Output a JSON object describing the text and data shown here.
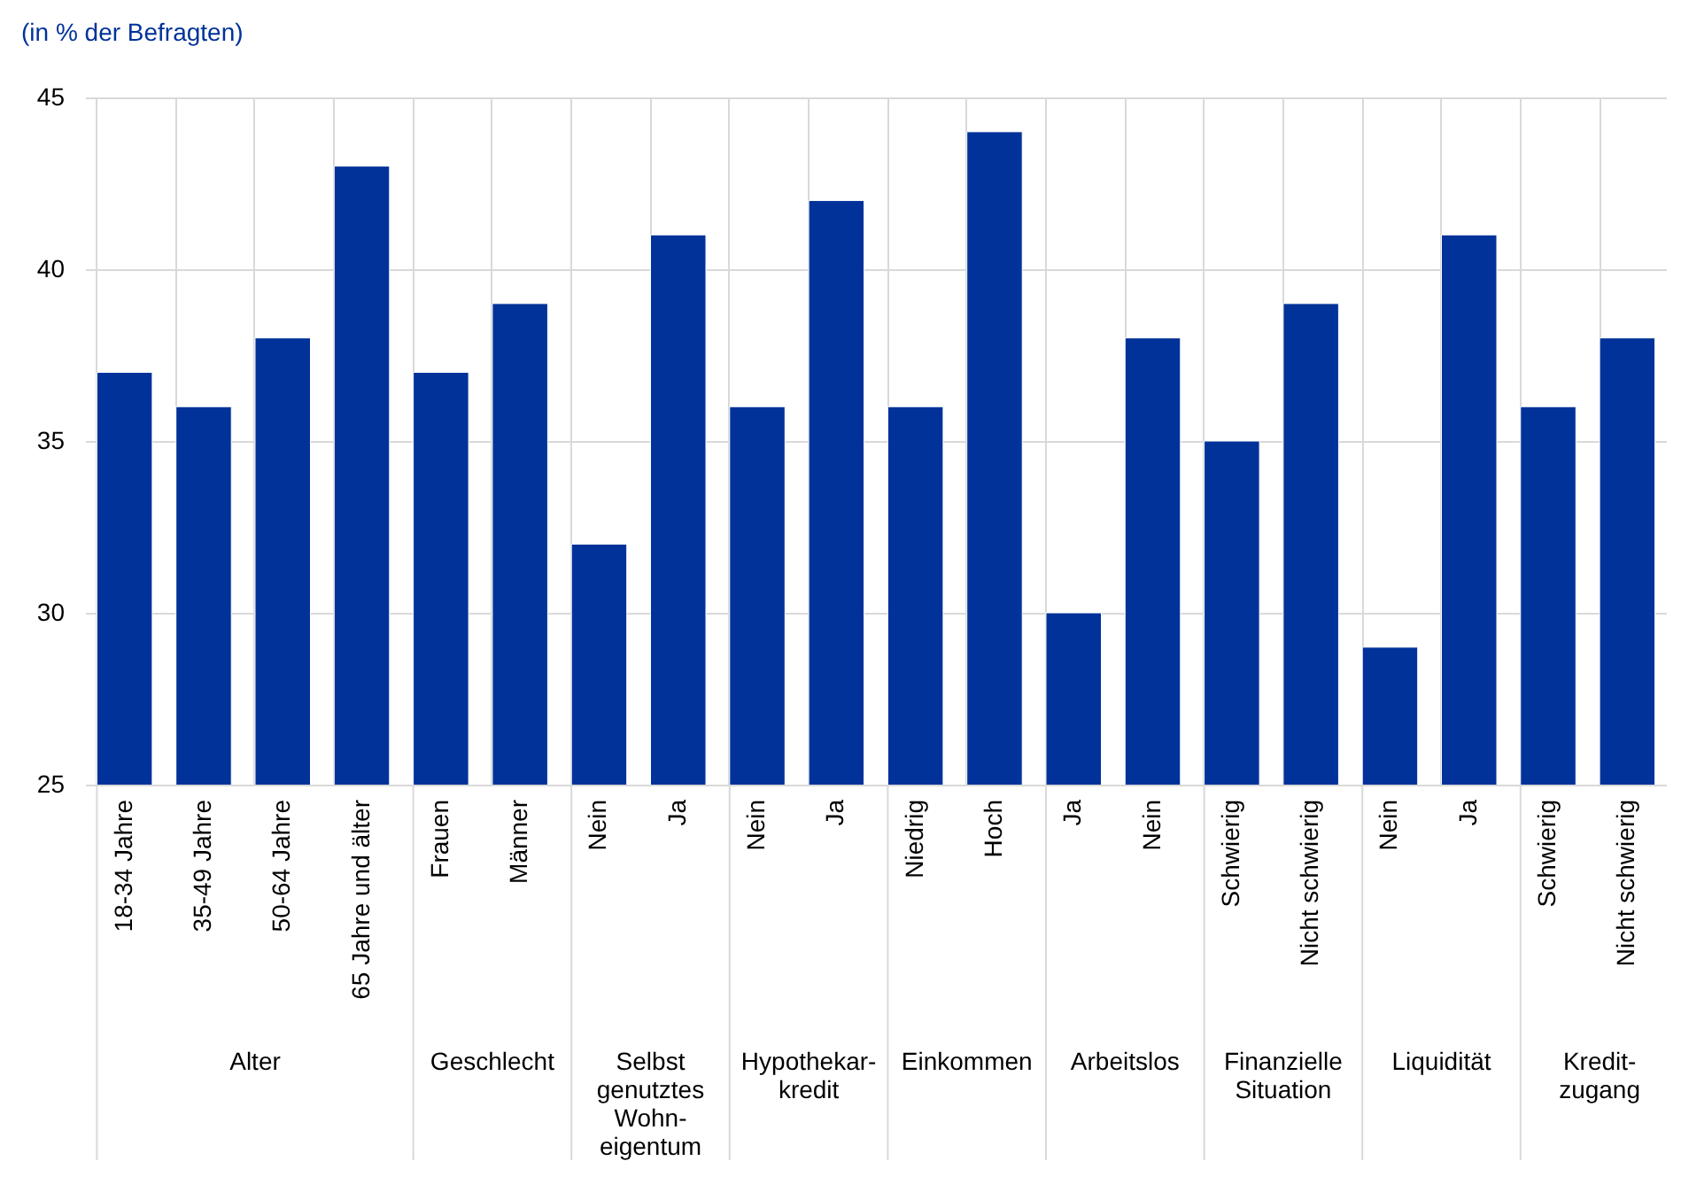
{
  "chart_data": {
    "type": "bar",
    "title": "(in % der Befragten)",
    "categories": [
      "18-34 Jahre",
      "35-49 Jahre",
      "50-64 Jahre",
      "65 Jahre und älter",
      "Frauen",
      "Männer",
      "Nein",
      "Ja",
      "Nein",
      "Ja",
      "Niedrig",
      "Hoch",
      "Ja",
      "Nein",
      "Schwierig",
      "Nicht schwierig",
      "Nein",
      "Ja",
      "Schwierig",
      "Nicht schwierig"
    ],
    "values": [
      37,
      36,
      38,
      43,
      37,
      39,
      32,
      41,
      36,
      42,
      36,
      44,
      30,
      38,
      35,
      39,
      29,
      41,
      36,
      38
    ],
    "color": "#003299",
    "ylim": [
      25,
      45
    ],
    "yticks": [
      25,
      30,
      35,
      40,
      45
    ],
    "grid": true,
    "annotations": [
      "Alter",
      "Geschlecht",
      "Selbst\ngenutztes\nWohn-\neigentum",
      "Hypothekar-\nkredit",
      "Einkommen",
      "Arbeitslos",
      "Finanzielle\nSituation",
      "Liquidität",
      "Kredit-\nzugang"
    ]
  }
}
